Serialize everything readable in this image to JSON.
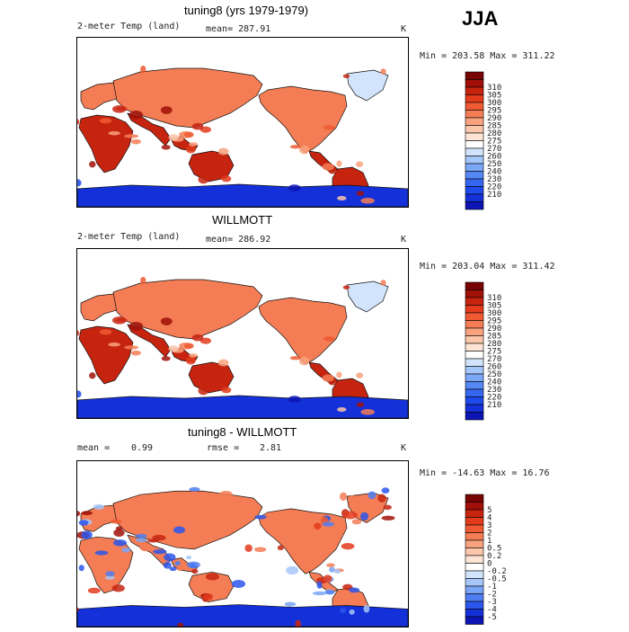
{
  "season": "JJA",
  "colors": {
    "temp_scale": [
      "#0a0a80",
      "#0c14b4",
      "#1430d8",
      "#1e4aec",
      "#3666f0",
      "#5588f4",
      "#7ba7f7",
      "#a5c6fa",
      "#d2e4fc",
      "#ffffff",
      "#fde4d4",
      "#fcc6ab",
      "#f9a27e",
      "#f57d55",
      "#ef5a33",
      "#e33b1c",
      "#c72410",
      "#a01008",
      "#780404"
    ],
    "diff_scale": [
      "#0a0a80",
      "#0c14b4",
      "#1430d8",
      "#2c56ec",
      "#4f7ef2",
      "#7aa4f6",
      "#a6c6fa",
      "#d2e4fc",
      "#ffffff",
      "#fde4d4",
      "#fcc6ab",
      "#f9a27e",
      "#f57d55",
      "#ef5a33",
      "#e33b1c",
      "#c72410",
      "#a01008",
      "#780404"
    ]
  },
  "panels": [
    {
      "title": "tuning8 (yrs 1979-1979)",
      "variable": "2-meter Temp (land)",
      "mean": "mean= 287.91",
      "units": "K",
      "minmax": "Min = 203.58 Max = 311.22",
      "kind": "temp",
      "colorbar_labels": [
        "310",
        "305",
        "300",
        "295",
        "290",
        "285",
        "280",
        "275",
        "270",
        "260",
        "250",
        "240",
        "230",
        "220",
        "210"
      ]
    },
    {
      "title": "WILLMOTT",
      "variable": "2-meter Temp (land)",
      "mean": "mean= 286.92",
      "units": "K",
      "minmax": "Min = 203.04 Max = 311.42",
      "kind": "temp",
      "colorbar_labels": [
        "310",
        "305",
        "300",
        "295",
        "290",
        "285",
        "280",
        "275",
        "270",
        "260",
        "250",
        "240",
        "230",
        "220",
        "210"
      ]
    },
    {
      "title": "tuning8 - WILLMOTT",
      "mean_label": "mean =",
      "mean_value": "0.99",
      "rmse_label": "rmse =",
      "rmse_value": "2.81",
      "units": "K",
      "minmax": "Min = -14.63 Max =  16.76",
      "kind": "diff",
      "colorbar_labels": [
        "5",
        "4",
        "3",
        "2",
        "1",
        "0.5",
        "0.2",
        "0",
        "-0.2",
        "-0.5",
        "-1",
        "-2",
        "-3",
        "-4",
        "-5"
      ]
    }
  ],
  "chart_data": [
    {
      "type": "heatmap",
      "title": "tuning8 (yrs 1979-1979)",
      "subtitle": "2-meter Temp (land)",
      "units": "K",
      "mean": 287.91,
      "min": 203.58,
      "max": 311.22,
      "contour_levels": [
        210,
        220,
        230,
        240,
        250,
        260,
        270,
        275,
        280,
        285,
        290,
        295,
        300,
        305,
        310
      ]
    },
    {
      "type": "heatmap",
      "title": "WILLMOTT",
      "subtitle": "2-meter Temp (land)",
      "units": "K",
      "mean": 286.92,
      "min": 203.04,
      "max": 311.42,
      "contour_levels": [
        210,
        220,
        230,
        240,
        250,
        260,
        270,
        275,
        280,
        285,
        290,
        295,
        300,
        305,
        310
      ]
    },
    {
      "type": "heatmap",
      "title": "tuning8 - WILLMOTT",
      "units": "K",
      "mean": 0.99,
      "rmse": 2.81,
      "min": -14.63,
      "max": 16.76,
      "contour_levels": [
        -5,
        -4,
        -3,
        -2,
        -1,
        -0.5,
        -0.2,
        0,
        0.2,
        0.5,
        1,
        2,
        3,
        4,
        5
      ]
    }
  ]
}
